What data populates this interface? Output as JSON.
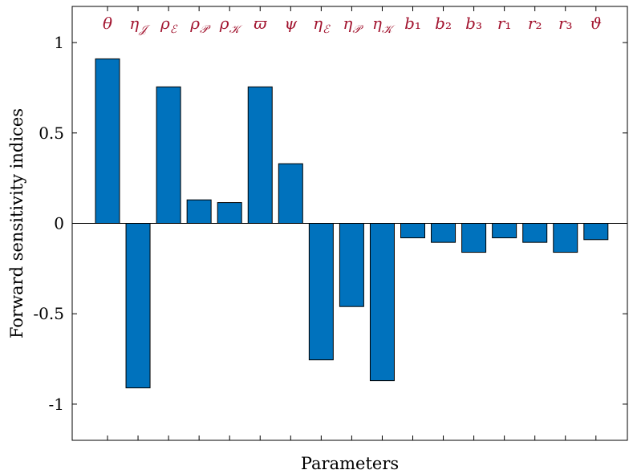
{
  "chart_data": {
    "type": "bar",
    "xlabel": "Parameters",
    "ylabel": "Forward sensitivity indices",
    "ylim": [
      -1.2,
      1.2
    ],
    "yticks": [
      -1,
      -0.5,
      0,
      0.5,
      1
    ],
    "ytick_labels": [
      "-1",
      "-0.5",
      "0",
      "0.5",
      "1"
    ],
    "categories": [
      "θ",
      "η𝒥",
      "ρℰ",
      "ρ𝒫",
      "ρ𝒦",
      "ϖ",
      "ψ",
      "ηℰ",
      "η𝒫",
      "η𝒦",
      "b₁",
      "b₂",
      "b₃",
      "r₁",
      "r₂",
      "r₃",
      "ϑ"
    ],
    "values": [
      0.91,
      -0.91,
      0.755,
      0.13,
      0.115,
      0.755,
      0.33,
      -0.755,
      -0.46,
      -0.87,
      -0.08,
      -0.105,
      -0.16,
      -0.08,
      -0.105,
      -0.16,
      -0.09
    ],
    "bar_color": "#0072BD",
    "label_color": "#A2142F",
    "grid": false,
    "legend": "none"
  }
}
